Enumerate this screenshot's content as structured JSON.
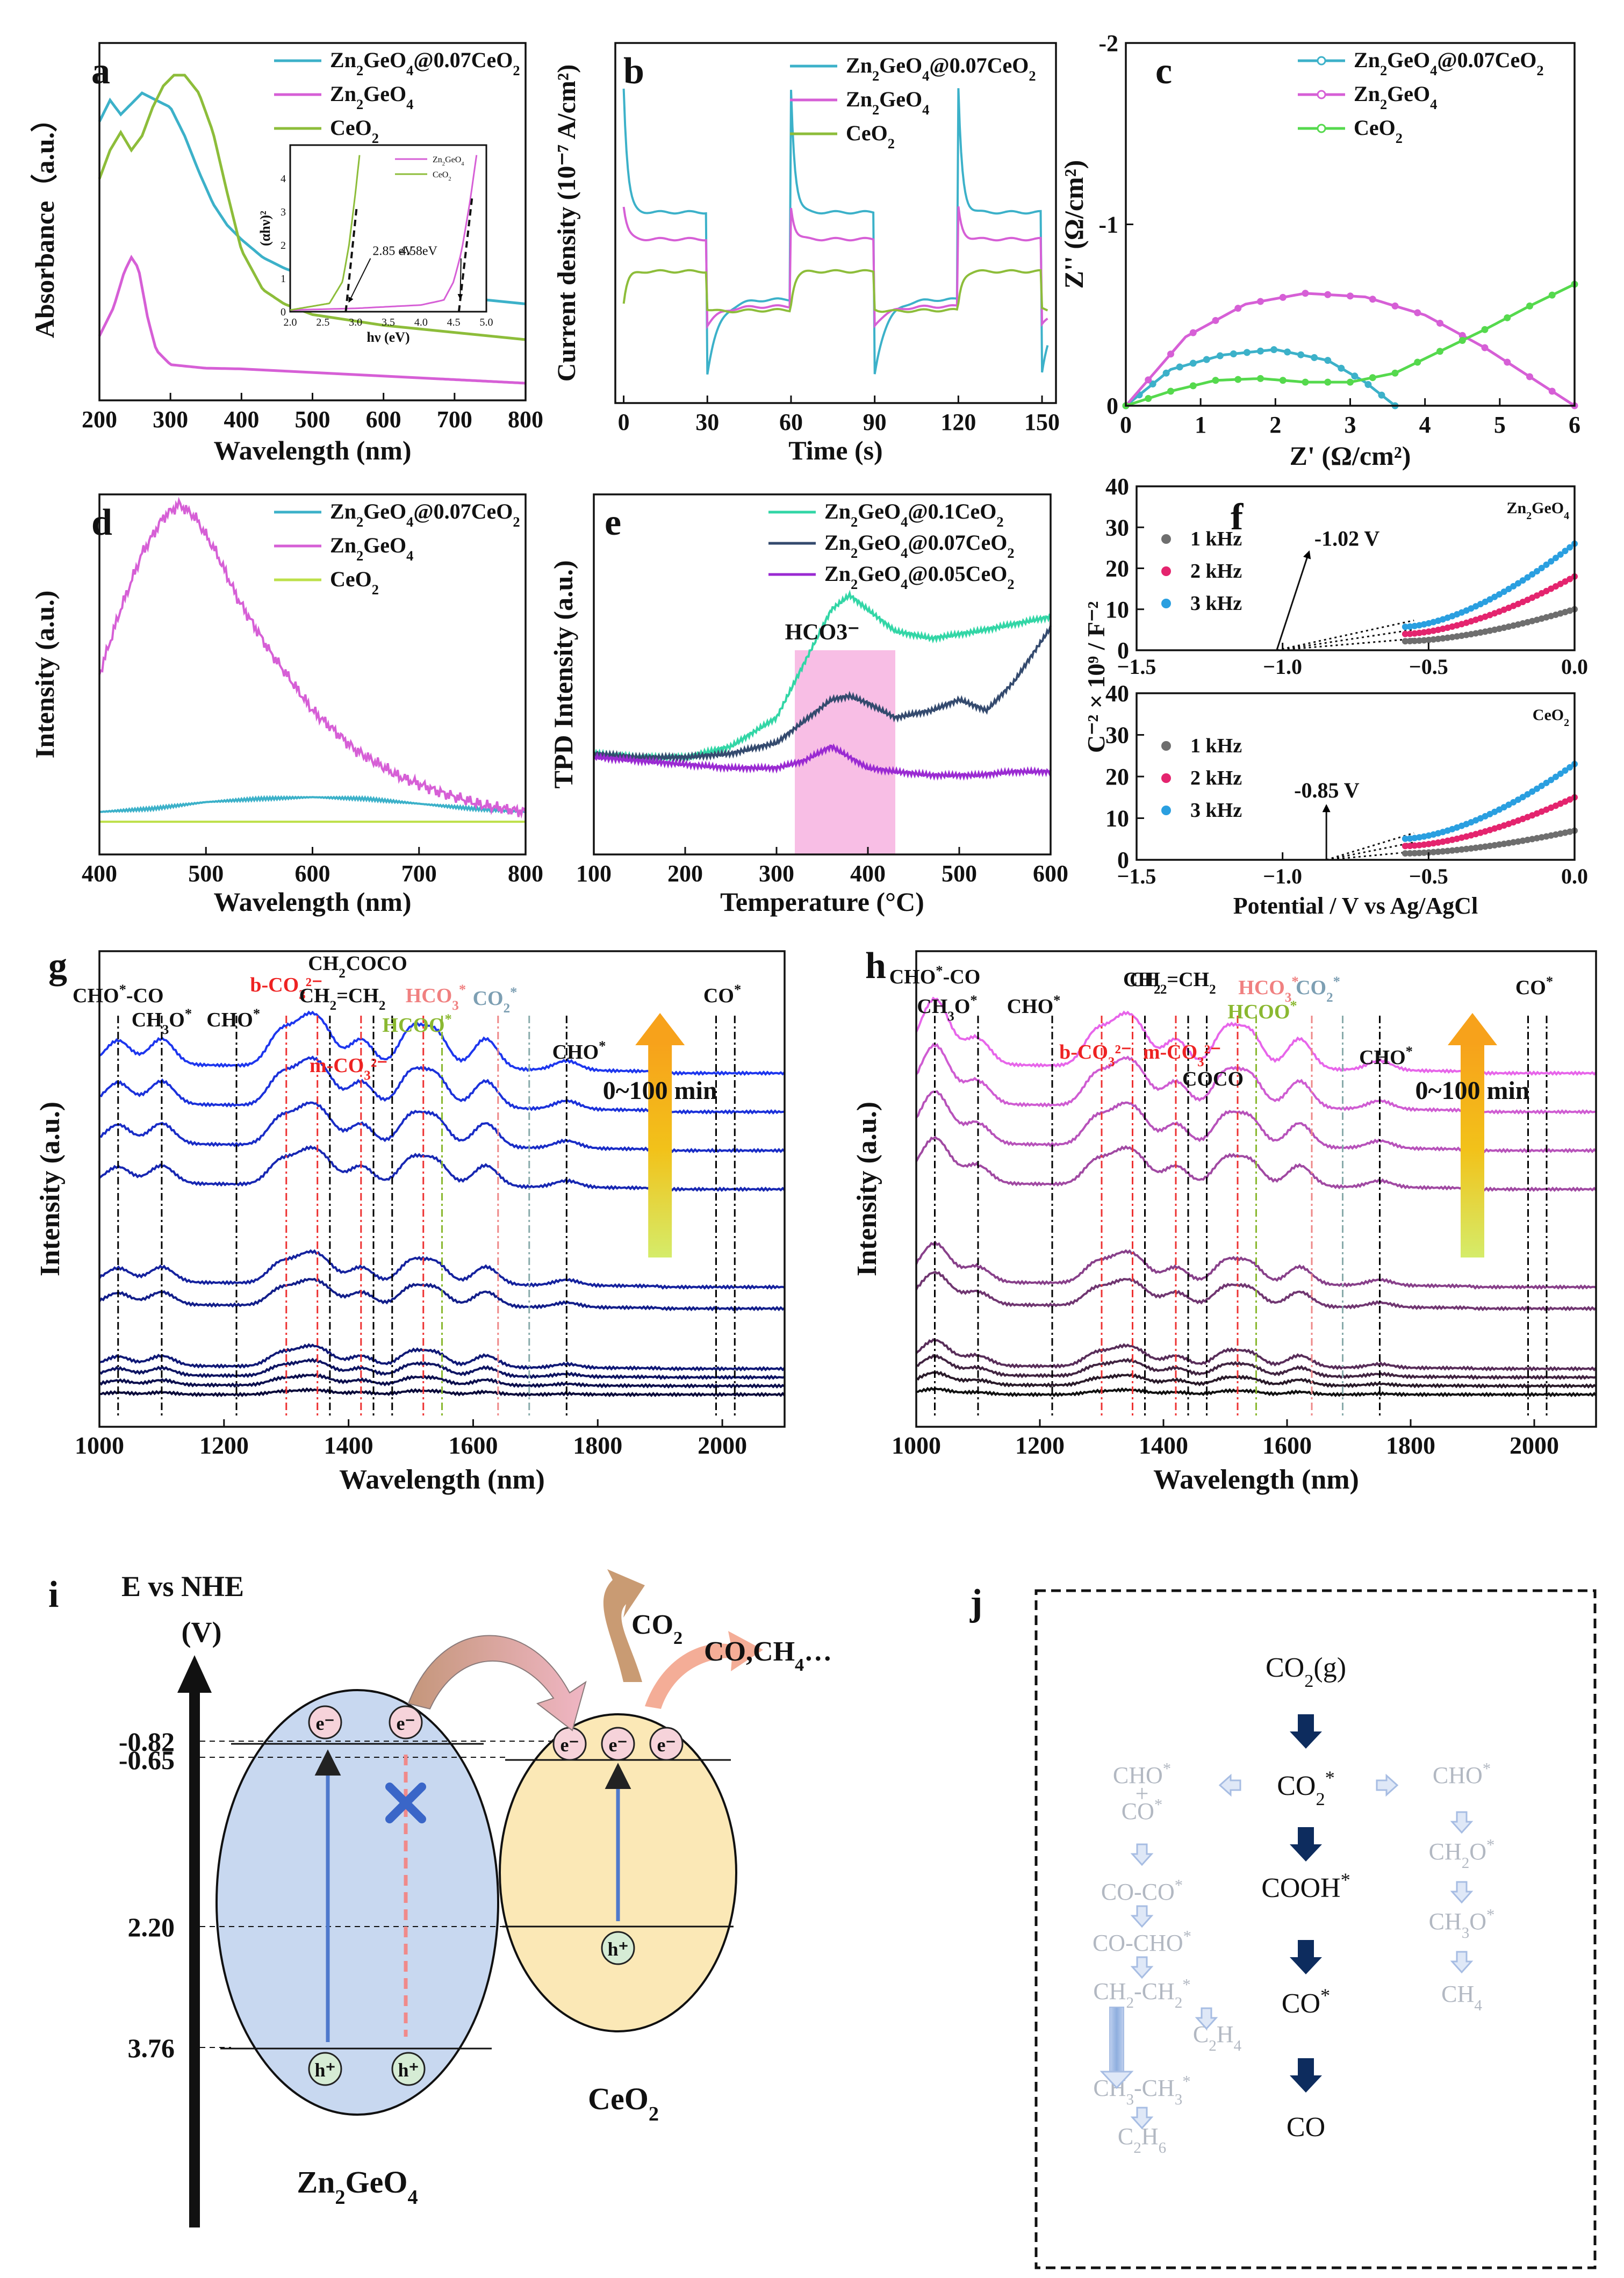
{
  "colors": {
    "composite": "#3cb1c9",
    "zgo": "#d65fd6",
    "ceo": "#8dbd3a",
    "ceo_pl": "#bde04a",
    "ceo_c": "#55d94d",
    "k1": "#6e6e6e",
    "k2": "#e4246e",
    "k3": "#2a9fe0",
    "e1": "#32d6a6",
    "e2": "#344a6e",
    "e3": "#9a2ad2",
    "blue": "#0e1ed0",
    "purple": "#d14bd6",
    "band1": "#c8d8f0",
    "band2": "#fbe8b6",
    "navy": "#0d2c5e",
    "gray": "#b2b8c2",
    "pale": "#a7bde3",
    "hl": "#f5a8dc"
  },
  "panel_labels": [
    "a",
    "b",
    "c",
    "d",
    "e",
    "f",
    "g",
    "h",
    "i",
    "j"
  ],
  "legends": {
    "main": [
      "Zn2GeO4@0.07CeO2",
      "Zn2GeO4",
      "CeO2"
    ],
    "e": [
      "Zn2GeO4@0.1CeO2",
      "Zn2GeO4@0.07CeO2",
      "Zn2GeO4@0.05CeO2"
    ],
    "f": [
      "1 kHz",
      "2 kHz",
      "3 kHz"
    ],
    "inset": [
      "Zn2GeO4",
      "CeO2"
    ]
  },
  "chart_data": [
    {
      "panel": "a",
      "type": "line",
      "xlabel": "Wavelength (nm)",
      "ylabel": "Absorbance（a.u.）",
      "xlim": [
        200,
        800
      ],
      "xticks": [
        200,
        300,
        400,
        500,
        600,
        700,
        800
      ],
      "series": [
        {
          "name": "Zn2GeO4@0.07CeO2",
          "x": [
            200,
            215,
            230,
            245,
            260,
            280,
            300,
            320,
            340,
            360,
            380,
            400,
            430,
            460,
            500,
            600,
            700,
            800
          ],
          "y": [
            0.78,
            0.84,
            0.8,
            0.83,
            0.86,
            0.84,
            0.82,
            0.74,
            0.64,
            0.55,
            0.49,
            0.45,
            0.4,
            0.37,
            0.34,
            0.31,
            0.29,
            0.27
          ]
        },
        {
          "name": "Zn2GeO4",
          "x": [
            200,
            220,
            235,
            245,
            255,
            268,
            280,
            300,
            350,
            400,
            500,
            600,
            700,
            800
          ],
          "y": [
            0.18,
            0.26,
            0.36,
            0.4,
            0.37,
            0.23,
            0.14,
            0.1,
            0.09,
            0.088,
            0.078,
            0.068,
            0.058,
            0.048
          ]
        },
        {
          "name": "CeO2",
          "x": [
            200,
            215,
            230,
            245,
            260,
            275,
            290,
            305,
            320,
            340,
            360,
            380,
            400,
            430,
            460,
            500,
            600,
            700,
            800
          ],
          "y": [
            0.62,
            0.7,
            0.75,
            0.7,
            0.74,
            0.82,
            0.88,
            0.91,
            0.91,
            0.86,
            0.75,
            0.58,
            0.42,
            0.31,
            0.27,
            0.24,
            0.21,
            0.19,
            0.17
          ]
        }
      ],
      "inset": {
        "xlabel": "hν (eV)",
        "ylabel": "(αhν)²",
        "xlim": [
          2.0,
          5.0
        ],
        "xticks": [
          "2.0",
          "2.5",
          "3.0",
          "3.5",
          "4.0",
          "4.5",
          "5.0"
        ],
        "yticks": [
          "0",
          "1",
          "2",
          "3",
          "4"
        ],
        "series": [
          {
            "name": "Zn2GeO4",
            "x": [
              2.0,
              3.0,
              4.0,
              4.35,
              4.5,
              4.62,
              4.75,
              4.85
            ],
            "y": [
              0.05,
              0.1,
              0.2,
              0.35,
              0.9,
              1.8,
              3.3,
              4.7
            ]
          },
          {
            "name": "CeO2",
            "x": [
              2.0,
              2.6,
              2.8,
              2.9,
              3.0,
              3.06
            ],
            "y": [
              0.05,
              0.25,
              0.9,
              2.0,
              3.6,
              4.7
            ]
          }
        ],
        "annotations": [
          "2.85 eV",
          "4.58eV"
        ]
      }
    },
    {
      "panel": "b",
      "type": "line",
      "xlabel": "Time (s)",
      "ylabel": "Current density (10⁻⁷ A/cm²)",
      "xlim": [
        0,
        155
      ],
      "xticks": [
        0,
        30,
        60,
        90,
        120,
        150
      ],
      "on_off_period_s": 30
    },
    {
      "panel": "c",
      "type": "line",
      "xlabel": "Z' (Ω/cm²)",
      "ylabel": "Z'' (Ω/cm²)",
      "xlim": [
        0,
        6
      ],
      "ylim": [
        0,
        -2
      ],
      "xticks": [
        0,
        1,
        2,
        3,
        4,
        5,
        6
      ],
      "yticks": [
        0,
        -1,
        -2
      ],
      "series": [
        {
          "name": "Zn2GeO4@0.07CeO2",
          "x": [
            0,
            0.6,
            1.3,
            2.0,
            2.7,
            3.2,
            3.6
          ],
          "y": [
            0,
            -0.2,
            -0.28,
            -0.31,
            -0.25,
            -0.13,
            0
          ]
        },
        {
          "name": "Zn2GeO4",
          "x": [
            0,
            0.8,
            1.6,
            2.4,
            3.2,
            4.0,
            4.8,
            5.4,
            6.0
          ],
          "y": [
            0,
            -0.38,
            -0.56,
            -0.62,
            -0.6,
            -0.5,
            -0.32,
            -0.16,
            0
          ]
        },
        {
          "name": "CeO2",
          "x": [
            0,
            0.6,
            1.2,
            1.8,
            2.4,
            3.0,
            3.6,
            4.2,
            4.8,
            5.4,
            6.0
          ],
          "y": [
            0,
            -0.08,
            -0.14,
            -0.15,
            -0.13,
            -0.13,
            -0.18,
            -0.3,
            -0.42,
            -0.55,
            -0.67
          ]
        }
      ]
    },
    {
      "panel": "d",
      "type": "line",
      "xlabel": "Wavelength (nm)",
      "ylabel": "Intensity (a.u.)",
      "xlim": [
        400,
        800
      ],
      "xticks": [
        400,
        500,
        600,
        700,
        800
      ],
      "series": [
        {
          "name": "Zn2GeO4@0.07CeO2",
          "x": [
            400,
            450,
            500,
            550,
            600,
            650,
            700,
            750,
            800
          ],
          "y": [
            0.03,
            0.04,
            0.06,
            0.07,
            0.075,
            0.07,
            0.055,
            0.04,
            0.03
          ]
        },
        {
          "name": "Zn2GeO4",
          "x": [
            400,
            420,
            440,
            460,
            475,
            490,
            510,
            530,
            560,
            600,
            640,
            680,
            720,
            760,
            800
          ],
          "y": [
            0.45,
            0.65,
            0.82,
            0.93,
            0.97,
            0.93,
            0.82,
            0.68,
            0.52,
            0.34,
            0.22,
            0.14,
            0.09,
            0.05,
            0.03
          ]
        },
        {
          "name": "CeO2",
          "x": [
            400,
            800
          ],
          "y": [
            0.0,
            0.0
          ]
        }
      ]
    },
    {
      "panel": "e",
      "type": "line",
      "xlabel": "Temperature (°C)",
      "ylabel": "TPD Intensity (a.u.)",
      "xlim": [
        100,
        600
      ],
      "xticks": [
        100,
        200,
        300,
        400,
        500,
        600
      ],
      "highlight": {
        "label": "HCO3⁻",
        "x_range": [
          320,
          430
        ]
      },
      "series": [
        {
          "name": "Zn2GeO4@0.1CeO2",
          "x": [
            100,
            150,
            200,
            250,
            300,
            330,
            360,
            380,
            400,
            430,
            470,
            520,
            560,
            600
          ],
          "y": [
            0.28,
            0.27,
            0.27,
            0.3,
            0.38,
            0.53,
            0.68,
            0.72,
            0.68,
            0.62,
            0.6,
            0.62,
            0.64,
            0.66
          ]
        },
        {
          "name": "Zn2GeO4@0.07CeO2",
          "x": [
            100,
            150,
            200,
            250,
            300,
            330,
            360,
            380,
            400,
            430,
            470,
            500,
            530,
            560,
            600
          ],
          "y": [
            0.28,
            0.27,
            0.27,
            0.28,
            0.31,
            0.37,
            0.43,
            0.44,
            0.42,
            0.38,
            0.4,
            0.43,
            0.4,
            0.48,
            0.63
          ]
        },
        {
          "name": "Zn2GeO4@0.05CeO2",
          "x": [
            100,
            150,
            200,
            250,
            300,
            330,
            360,
            380,
            400,
            430,
            470,
            520,
            560,
            600
          ],
          "y": [
            0.27,
            0.26,
            0.25,
            0.24,
            0.24,
            0.26,
            0.3,
            0.27,
            0.24,
            0.23,
            0.22,
            0.22,
            0.23,
            0.23
          ]
        }
      ]
    },
    {
      "panel": "f",
      "type": "scatter",
      "xlabel": "Potential / V vs Ag/AgCl",
      "ylabel": "C⁻² × 10⁹ / F⁻²",
      "xlim": [
        -1.5,
        0
      ],
      "ylim": [
        0,
        40
      ],
      "xticks": [
        "−1.5",
        "−1.0",
        "−0.5",
        "0.0"
      ],
      "yticks": [
        0,
        10,
        20,
        30,
        40
      ],
      "subplots": [
        {
          "title": "Zn2GeO4",
          "flatband": "-1.02 V",
          "fb_value": -1.02,
          "end_values": [
            10,
            18,
            26
          ]
        },
        {
          "title": "CeO2",
          "flatband": "-0.85 V",
          "fb_value": -0.85,
          "end_values": [
            7,
            15,
            23
          ]
        }
      ]
    },
    {
      "panel": "g",
      "type": "line",
      "xlabel": "Wavelength (nm)",
      "ylabel": "Intensity (a.u.)",
      "xlim": [
        1000,
        2100
      ],
      "xticks": [
        1000,
        1200,
        1400,
        1600,
        1800,
        2000
      ],
      "time_label": "0~100 min",
      "n_spectra": 10,
      "peak_labels": [
        "CHO*-CO",
        "CH3O*",
        "CHO*",
        "b-CO3²⁻",
        "CH2",
        "CH2=CH2",
        "COCO",
        "m-CO3²⁻",
        "HCO3*",
        "HCOO*",
        "CO2*",
        "CHO*",
        "CO*"
      ]
    },
    {
      "panel": "h",
      "type": "line",
      "xlabel": "Wavelength (nm)",
      "ylabel": "Intensity (a.u.)",
      "xlim": [
        1000,
        2100
      ],
      "xticks": [
        1000,
        1200,
        1400,
        1600,
        1800,
        2000
      ],
      "time_label": "0~100 min",
      "n_spectra": 10,
      "peak_labels": [
        "CHO*-CO",
        "CH3O*",
        "CHO*",
        "b-CO3²⁻",
        "CH2",
        "CH2=CH2",
        "COCO",
        "m-CO3²⁻",
        "HCO3*",
        "HCOO*",
        "CO2*",
        "CHO*",
        "CO*"
      ]
    }
  ],
  "panel_i": {
    "axis_title": "E vs NHE",
    "axis_unit": "(V)",
    "levels": [
      "-0.82",
      "-0.65",
      "2.20",
      "3.76"
    ],
    "left_name": "Zn2GeO4",
    "right_name": "CeO2",
    "co2": "CO2",
    "products": "CO,CH4…",
    "electron": "e⁻",
    "hole": "h⁺"
  },
  "panel_j": {
    "main": [
      "CO2(g)",
      "CO2*",
      "COOH*",
      "CO*",
      "CO"
    ],
    "left": [
      "CHO*",
      "+",
      "CO*",
      "CO-CO*",
      "CO-CHO*",
      "CH2-CH2*",
      "C2H4",
      "CH3-CH3*",
      "C2H6"
    ],
    "right": [
      "CHO*",
      "CH2O*",
      "CH3O*",
      "CH4"
    ]
  }
}
